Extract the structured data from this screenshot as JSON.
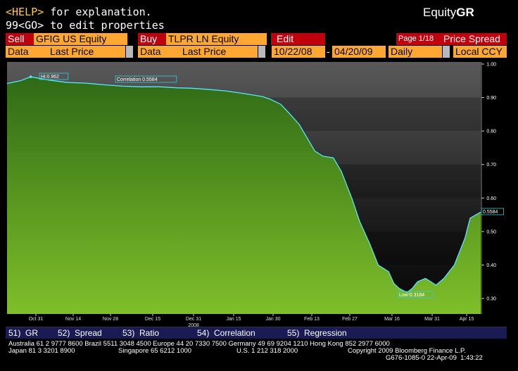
{
  "header": {
    "help_key": "<HELP>",
    "help_text": " for explanation.",
    "edit_line": "99<GO> to edit properties",
    "brand_prefix": "Equity",
    "brand_suffix": "GR"
  },
  "toolbar": {
    "sell_label": "Sell",
    "sell_ticker": "GFIG US Equity",
    "buy_label": "Buy",
    "buy_ticker": "TLPR LN Equity",
    "edit_label": "Edit",
    "page_label": "Page 1/18",
    "mode_label": "Price Spread",
    "data_label_1": "Data",
    "field_1": "Last Price",
    "data_label_2": "Data",
    "field_2": "Last Price",
    "start_date": "10/22/08",
    "date_sep": "-",
    "end_date": "04/20/09",
    "period": "Daily",
    "currency": "Local CCY"
  },
  "chart_data": {
    "type": "area",
    "title": "",
    "xlabel": "",
    "ylabel": "",
    "ylim": [
      0.25,
      1.0
    ],
    "y_ticks": [
      "1.00",
      "0.90",
      "0.80",
      "0.70",
      "0.60",
      "0.50",
      "0.40",
      "0.30"
    ],
    "x_ticks": [
      "Oct 31",
      "Nov 14",
      "Nov 28",
      "Dec 15",
      "Dec 31",
      "Jan 15",
      "Jan 30",
      "Feb 13",
      "Feb 27",
      "Mar 16",
      "Mar 31",
      "Apr 15"
    ],
    "year_label": "2008",
    "series": [
      {
        "name": "Correlation",
        "x": [
          "10/22/08",
          "10/27/08",
          "10/31/08",
          "11/07/08",
          "11/14/08",
          "11/21/08",
          "11/28/08",
          "12/05/08",
          "12/12/08",
          "12/19/08",
          "12/26/08",
          "12/31/08",
          "01/07/09",
          "01/13/09",
          "01/20/09",
          "01/27/09",
          "01/30/09",
          "02/03/09",
          "02/06/09",
          "02/10/09",
          "02/13/09",
          "02/16/09",
          "02/19/09",
          "02/23/09",
          "02/26/09",
          "03/02/09",
          "03/05/09",
          "03/09/09",
          "03/12/09",
          "03/16/09",
          "03/18/09",
          "03/20/09",
          "03/23/09",
          "03/25/09",
          "03/27/09",
          "03/30/09",
          "04/01/09",
          "04/03/09",
          "04/06/09",
          "04/08/09",
          "04/10/09",
          "04/14/09",
          "04/16/09",
          "04/20/09"
        ],
        "values": [
          0.942,
          0.95,
          0.962,
          0.952,
          0.945,
          0.943,
          0.938,
          0.934,
          0.932,
          0.932,
          0.929,
          0.928,
          0.924,
          0.92,
          0.912,
          0.903,
          0.895,
          0.88,
          0.855,
          0.82,
          0.78,
          0.74,
          0.725,
          0.72,
          0.68,
          0.6,
          0.53,
          0.46,
          0.4,
          0.38,
          0.345,
          0.33,
          0.318,
          0.33,
          0.35,
          0.36,
          0.35,
          0.34,
          0.36,
          0.38,
          0.4,
          0.48,
          0.54,
          0.558
        ]
      }
    ],
    "annotations": {
      "hi": "Hi:0.962",
      "low": "Low:0.3184",
      "correlation_label": "Correlation",
      "correlation_value": "0.5584",
      "last_value": "0.5584"
    },
    "colors": {
      "fill_top": "#2f6a16",
      "fill_bottom": "#7fbf2a",
      "line": "#56e6ff",
      "label_box": "#33ccdd"
    }
  },
  "menu": [
    {
      "num": "51)",
      "label": "GR"
    },
    {
      "num": "52)",
      "label": "Spread"
    },
    {
      "num": "53)",
      "label": "Ratio"
    },
    {
      "num": "54)",
      "label": "Correlation"
    },
    {
      "num": "55)",
      "label": "Regression"
    }
  ],
  "footer": {
    "line1": "Australia 61 2 9777 8600 Brazil 5511 3048 4500 Europe 44 20 7330 7500 Germany 49 69 9204 1210 Hong Kong 852 2977 6000",
    "line2_left": "Japan 81 3 3201 8900",
    "line2_mid": "Singapore 65 6212 1000",
    "line2_us": "U.S. 1 212 318 2000",
    "line2_right": "Copyright 2009 Bloomberg Finance L.P.",
    "line3": "G676-1085-0 22-Apr-09  1:43:22"
  }
}
